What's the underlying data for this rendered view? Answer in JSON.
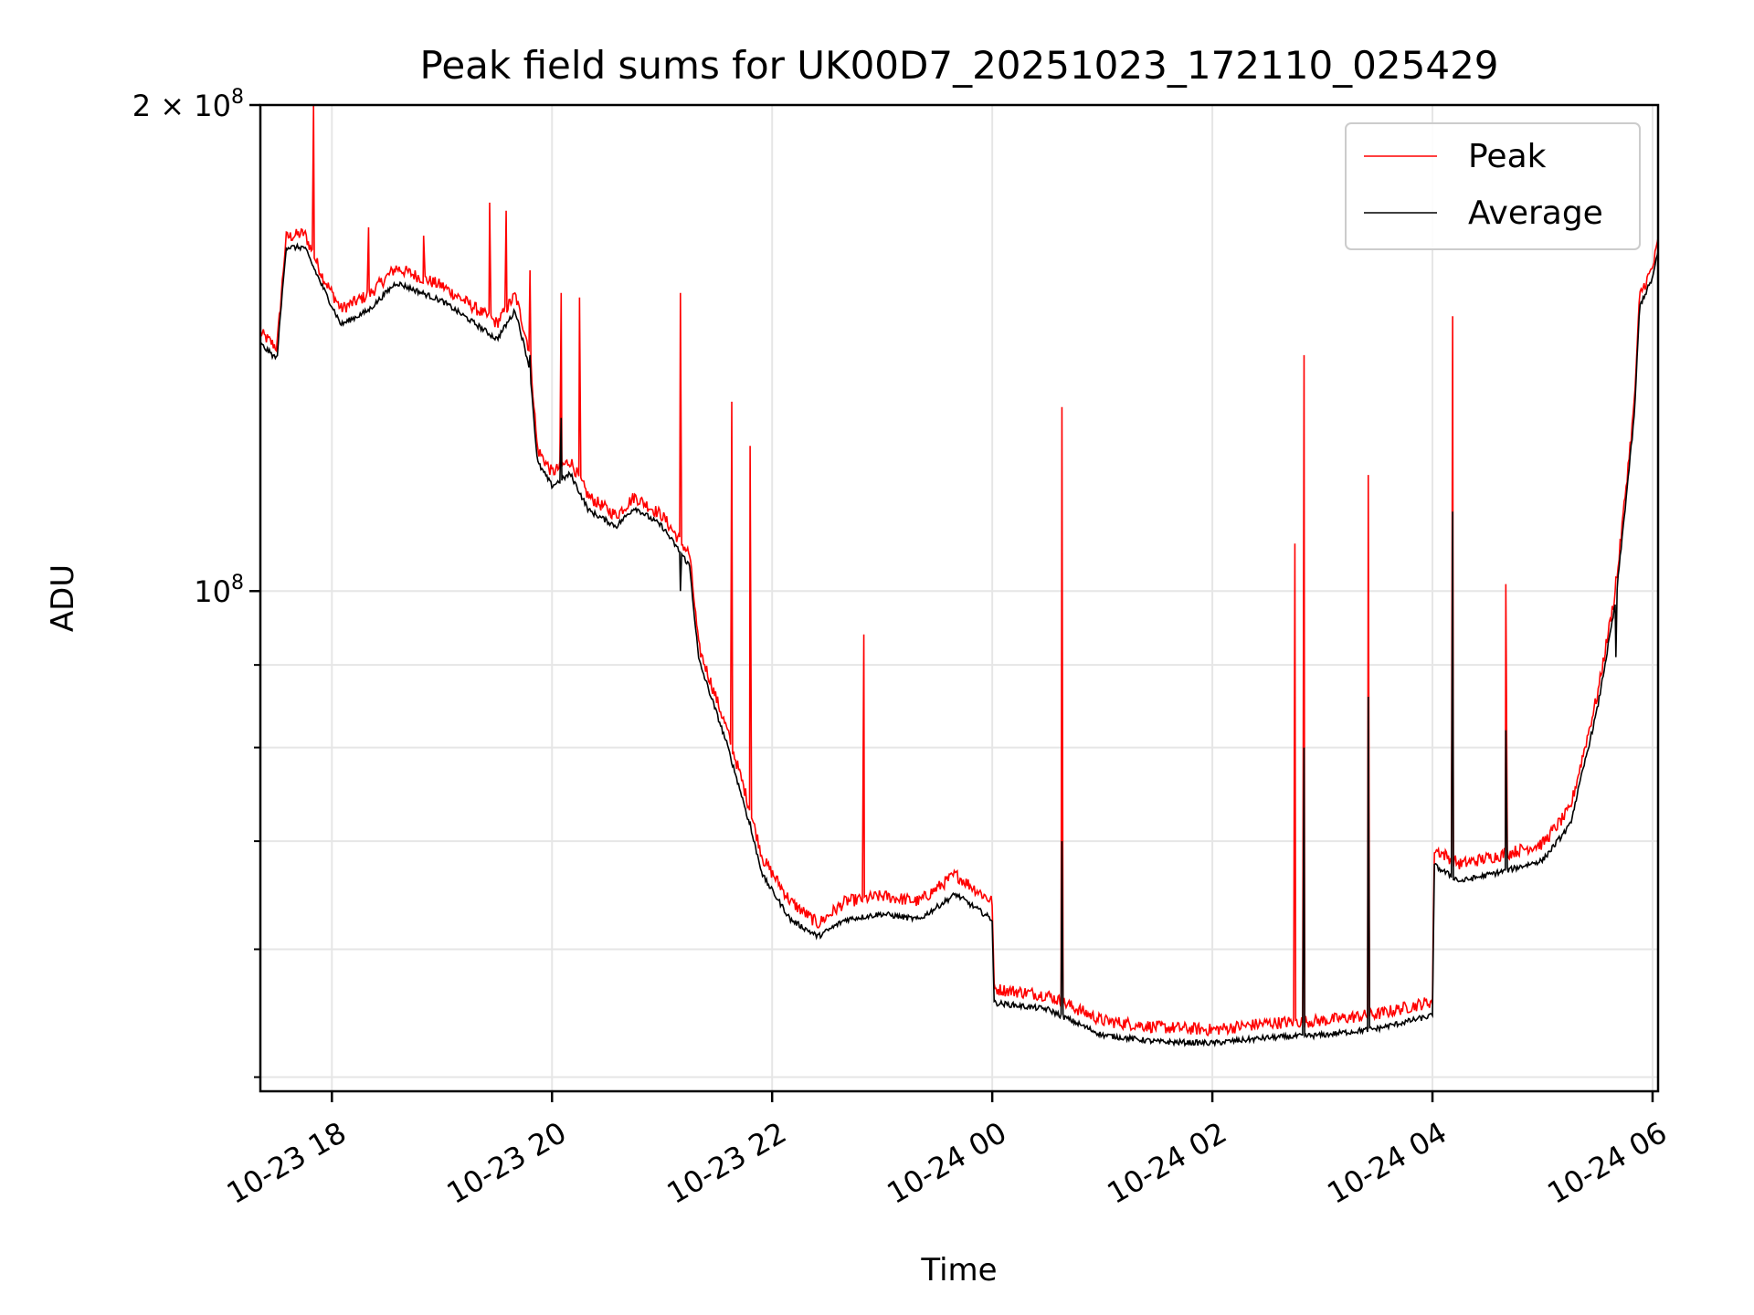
{
  "chart_data": {
    "type": "line",
    "title": "Peak field sums for UK00D7_20251023_172110_025429",
    "xlabel": "Time",
    "ylabel": "ADU",
    "yscale": "log",
    "ylim": [
      49000000,
      200000000
    ],
    "xlim": [
      "2025-10-23 17:21",
      "2025-10-24 06:03"
    ],
    "grid": true,
    "legend_position": "top-right",
    "x_ticks": [
      {
        "t": "2025-10-23 18:00",
        "label": "10-23 18"
      },
      {
        "t": "2025-10-23 20:00",
        "label": "10-23 20"
      },
      {
        "t": "2025-10-23 22:00",
        "label": "10-23 22"
      },
      {
        "t": "2025-10-24 00:00",
        "label": "10-24 00"
      },
      {
        "t": "2025-10-24 02:00",
        "label": "10-24 02"
      },
      {
        "t": "2025-10-24 04:00",
        "label": "10-24 04"
      },
      {
        "t": "2025-10-24 06:00",
        "label": "10-24 06"
      }
    ],
    "y_ticks": [
      {
        "v": 100000000,
        "label": "10",
        "exp": "8"
      },
      {
        "v": 200000000,
        "label": "2 × 10",
        "exp": "8"
      }
    ],
    "y_minor_ticks": [
      50000000,
      60000000,
      70000000,
      80000000,
      90000000
    ],
    "series": [
      {
        "name": "Peak",
        "color": "#ff0000",
        "points": [
          [
            "2025-10-23 17:21",
            144000000
          ],
          [
            "2025-10-23 17:30",
            141000000
          ],
          [
            "2025-10-23 17:35",
            165000000
          ],
          [
            "2025-10-23 17:45",
            166000000
          ],
          [
            "2025-10-23 17:55",
            156000000
          ],
          [
            "2025-10-23 18:05",
            149000000
          ],
          [
            "2025-10-23 18:20",
            152000000
          ],
          [
            "2025-10-23 18:35",
            158000000
          ],
          [
            "2025-10-23 19:00",
            154000000
          ],
          [
            "2025-10-23 19:15",
            150000000
          ],
          [
            "2025-10-23 19:30",
            146000000
          ],
          [
            "2025-10-23 19:40",
            152000000
          ],
          [
            "2025-10-23 19:48",
            140000000
          ],
          [
            "2025-10-23 19:52",
            122000000
          ],
          [
            "2025-10-23 20:00",
            118000000
          ],
          [
            "2025-10-23 20:10",
            120000000
          ],
          [
            "2025-10-23 20:20",
            114000000
          ],
          [
            "2025-10-23 20:35",
            111000000
          ],
          [
            "2025-10-23 20:45",
            114000000
          ],
          [
            "2025-10-23 21:00",
            111000000
          ],
          [
            "2025-10-23 21:15",
            105000000
          ],
          [
            "2025-10-23 21:20",
            92000000
          ],
          [
            "2025-10-23 21:35",
            82000000
          ],
          [
            "2025-10-23 21:45",
            75000000
          ],
          [
            "2025-10-23 21:55",
            68000000
          ],
          [
            "2025-10-23 22:10",
            64000000
          ],
          [
            "2025-10-23 22:25",
            62000000
          ],
          [
            "2025-10-23 22:40",
            64000000
          ],
          [
            "2025-10-23 23:00",
            64500000
          ],
          [
            "2025-10-23 23:20",
            64000000
          ],
          [
            "2025-10-23 23:40",
            66500000
          ],
          [
            "2025-10-24 00:00",
            64000000
          ],
          [
            "2025-10-24 00:01",
            56500000
          ],
          [
            "2025-10-24 00:30",
            56000000
          ],
          [
            "2025-10-24 01:00",
            54000000
          ],
          [
            "2025-10-24 01:30",
            53500000
          ],
          [
            "2025-10-24 02:00",
            53300000
          ],
          [
            "2025-10-24 02:30",
            53800000
          ],
          [
            "2025-10-24 03:00",
            54000000
          ],
          [
            "2025-10-24 03:30",
            54500000
          ],
          [
            "2025-10-24 04:00",
            55500000
          ],
          [
            "2025-10-24 04:01",
            69000000
          ],
          [
            "2025-10-24 04:15",
            67500000
          ],
          [
            "2025-10-24 04:40",
            68500000
          ],
          [
            "2025-10-24 05:00",
            69500000
          ],
          [
            "2025-10-24 05:15",
            73000000
          ],
          [
            "2025-10-24 05:30",
            86000000
          ],
          [
            "2025-10-24 05:40",
            100000000
          ],
          [
            "2025-10-24 05:50",
            130000000
          ],
          [
            "2025-10-24 05:53",
            152000000
          ],
          [
            "2025-10-24 06:00",
            158000000
          ],
          [
            "2025-10-24 06:03",
            164000000
          ]
        ],
        "spikes": [
          [
            "2025-10-23 17:50",
            200000000
          ],
          [
            "2025-10-23 18:20",
            168000000
          ],
          [
            "2025-10-23 18:50",
            166000000
          ],
          [
            "2025-10-23 19:26",
            174000000
          ],
          [
            "2025-10-23 19:35",
            172000000
          ],
          [
            "2025-10-23 19:48",
            158000000
          ],
          [
            "2025-10-23 20:05",
            153000000
          ],
          [
            "2025-10-23 20:15",
            152000000
          ],
          [
            "2025-10-23 21:10",
            153000000
          ],
          [
            "2025-10-23 21:38",
            131000000
          ],
          [
            "2025-10-23 21:48",
            123000000
          ],
          [
            "2025-10-23 22:50",
            94000000
          ],
          [
            "2025-10-24 00:38",
            130000000
          ],
          [
            "2025-10-24 02:45",
            107000000
          ],
          [
            "2025-10-24 02:50",
            140000000
          ],
          [
            "2025-10-24 03:25",
            118000000
          ],
          [
            "2025-10-24 04:11",
            148000000
          ],
          [
            "2025-10-24 04:40",
            101000000
          ],
          [
            "2025-10-24 05:40",
            102000000
          ]
        ]
      },
      {
        "name": "Average",
        "color": "#000000",
        "points": [
          [
            "2025-10-23 17:21",
            142000000
          ],
          [
            "2025-10-23 17:30",
            139000000
          ],
          [
            "2025-10-23 17:35",
            163000000
          ],
          [
            "2025-10-23 17:45",
            163000000
          ],
          [
            "2025-10-23 17:55",
            154000000
          ],
          [
            "2025-10-23 18:05",
            146000000
          ],
          [
            "2025-10-23 18:20",
            149000000
          ],
          [
            "2025-10-23 18:35",
            155000000
          ],
          [
            "2025-10-23 19:00",
            151000000
          ],
          [
            "2025-10-23 19:15",
            147000000
          ],
          [
            "2025-10-23 19:30",
            143000000
          ],
          [
            "2025-10-23 19:40",
            149000000
          ],
          [
            "2025-10-23 19:48",
            137000000
          ],
          [
            "2025-10-23 19:52",
            120000000
          ],
          [
            "2025-10-23 20:00",
            116000000
          ],
          [
            "2025-10-23 20:10",
            118000000
          ],
          [
            "2025-10-23 20:20",
            112000000
          ],
          [
            "2025-10-23 20:35",
            109500000
          ],
          [
            "2025-10-23 20:45",
            112500000
          ],
          [
            "2025-10-23 21:00",
            109500000
          ],
          [
            "2025-10-23 21:15",
            103500000
          ],
          [
            "2025-10-23 21:20",
            90500000
          ],
          [
            "2025-10-23 21:35",
            80500000
          ],
          [
            "2025-10-23 21:45",
            73500000
          ],
          [
            "2025-10-23 21:55",
            66500000
          ],
          [
            "2025-10-23 22:10",
            62500000
          ],
          [
            "2025-10-23 22:25",
            61000000
          ],
          [
            "2025-10-23 22:40",
            62500000
          ],
          [
            "2025-10-23 23:00",
            63000000
          ],
          [
            "2025-10-23 23:20",
            62500000
          ],
          [
            "2025-10-23 23:40",
            64800000
          ],
          [
            "2025-10-24 00:00",
            62500000
          ],
          [
            "2025-10-24 00:01",
            55500000
          ],
          [
            "2025-10-24 00:30",
            55000000
          ],
          [
            "2025-10-24 01:00",
            53000000
          ],
          [
            "2025-10-24 01:30",
            52500000
          ],
          [
            "2025-10-24 02:00",
            52400000
          ],
          [
            "2025-10-24 02:30",
            52800000
          ],
          [
            "2025-10-24 03:00",
            53000000
          ],
          [
            "2025-10-24 03:30",
            53500000
          ],
          [
            "2025-10-24 04:00",
            54500000
          ],
          [
            "2025-10-24 04:01",
            67500000
          ],
          [
            "2025-10-24 04:15",
            66000000
          ],
          [
            "2025-10-24 04:40",
            67000000
          ],
          [
            "2025-10-24 05:00",
            68000000
          ],
          [
            "2025-10-24 05:15",
            71500000
          ],
          [
            "2025-10-24 05:30",
            84500000
          ],
          [
            "2025-10-24 05:40",
            98500000
          ],
          [
            "2025-10-24 05:50",
            128000000
          ],
          [
            "2025-10-24 05:53",
            150000000
          ],
          [
            "2025-10-24 06:00",
            156000000
          ],
          [
            "2025-10-24 06:03",
            162000000
          ]
        ],
        "spikes": [
          [
            "2025-10-23 19:48",
            140000000
          ],
          [
            "2025-10-23 20:05",
            128000000
          ],
          [
            "2025-10-23 21:10",
            100000000
          ],
          [
            "2025-10-23 21:48",
            72000000
          ],
          [
            "2025-10-24 00:38",
            70000000
          ],
          [
            "2025-10-24 02:50",
            80000000
          ],
          [
            "2025-10-24 03:25",
            86000000
          ],
          [
            "2025-10-24 04:11",
            112000000
          ],
          [
            "2025-10-24 04:40",
            82000000
          ],
          [
            "2025-10-24 05:40",
            91000000
          ]
        ]
      }
    ]
  }
}
